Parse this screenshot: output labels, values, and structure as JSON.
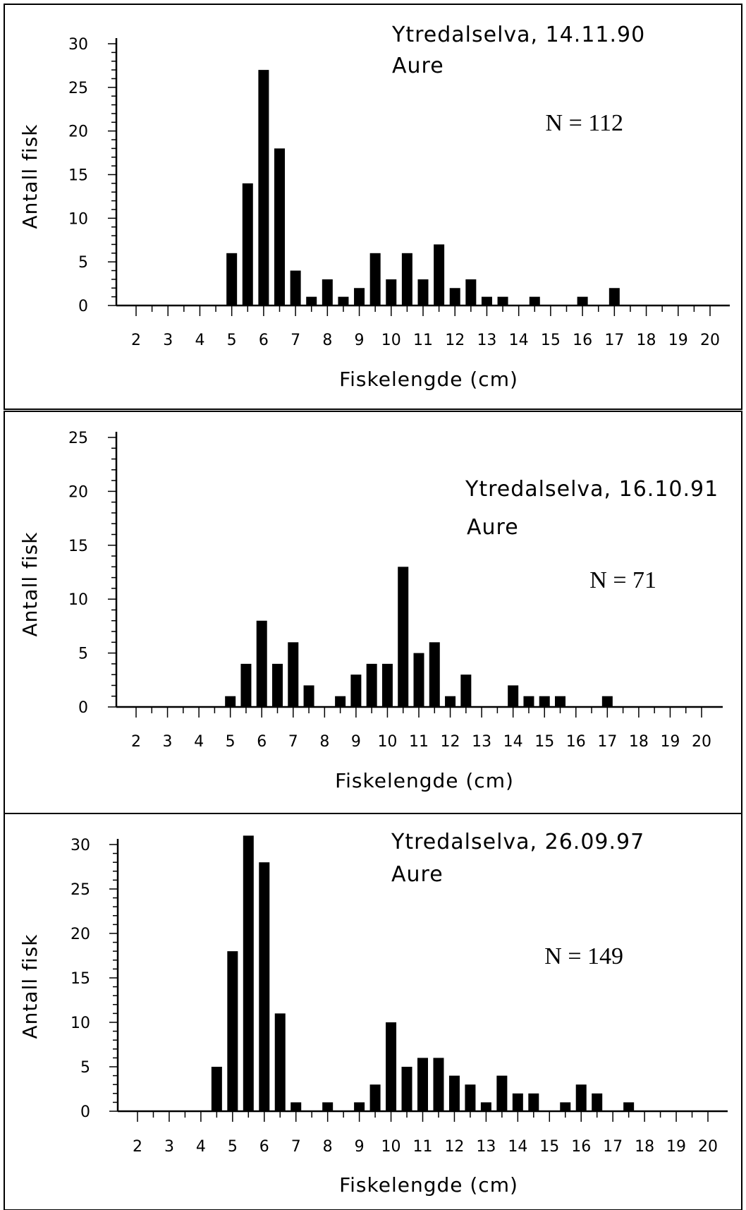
{
  "chart_data": [
    {
      "type": "bar",
      "title": "Ytredalselva, 14.11.90",
      "subtitle": "Aure",
      "annotation": "N = 112",
      "xlabel": "Fiskelengde (cm)",
      "ylabel": "Antall fisk",
      "xlim": [
        1.5,
        20.5
      ],
      "ylim": [
        0,
        30
      ],
      "y_ticks": [
        0,
        5,
        10,
        15,
        20,
        25,
        30
      ],
      "x_ticks": [
        2,
        3,
        4,
        5,
        6,
        7,
        8,
        9,
        10,
        11,
        12,
        13,
        14,
        15,
        16,
        17,
        18,
        19,
        20
      ],
      "x": [
        5,
        5.5,
        6,
        6.5,
        7,
        7.5,
        8,
        8.5,
        9,
        9.5,
        10,
        10.5,
        11,
        11.5,
        12,
        12.5,
        13,
        13.5,
        14.5,
        16,
        17
      ],
      "values": [
        6,
        14,
        27,
        18,
        4,
        1,
        3,
        1,
        2,
        6,
        3,
        6,
        3,
        7,
        2,
        3,
        1,
        1,
        1,
        1,
        2
      ],
      "color": "#000000"
    },
    {
      "type": "bar",
      "title": "Ytredalselva, 16.10.91",
      "subtitle": "Aure",
      "annotation": "N = 71",
      "xlabel": "Fiskelengde (cm)",
      "ylabel": "Antall fisk",
      "xlim": [
        1.5,
        20.5
      ],
      "ylim": [
        0,
        25
      ],
      "y_ticks": [
        0,
        5,
        10,
        15,
        20,
        25
      ],
      "x_ticks": [
        2,
        3,
        4,
        5,
        6,
        7,
        8,
        9,
        10,
        11,
        12,
        13,
        14,
        15,
        16,
        17,
        18,
        19,
        20
      ],
      "x": [
        5,
        5.5,
        6,
        6.5,
        7,
        7.5,
        8.5,
        9,
        9.5,
        10,
        10.5,
        11,
        11.5,
        12,
        12.5,
        14,
        14.5,
        15,
        15.5,
        17
      ],
      "values": [
        1,
        4,
        8,
        4,
        6,
        2,
        1,
        3,
        4,
        4,
        13,
        5,
        6,
        1,
        3,
        2,
        1,
        1,
        1,
        1
      ],
      "color": "#000000"
    },
    {
      "type": "bar",
      "title": "Ytredalselva, 26.09.97",
      "subtitle": "Aure",
      "annotation": "N = 149",
      "xlabel": "Fiskelengde (cm)",
      "ylabel": "Antall fisk",
      "xlim": [
        1.5,
        20.5
      ],
      "ylim": [
        0,
        30
      ],
      "y_ticks": [
        0,
        5,
        10,
        15,
        20,
        25,
        30
      ],
      "x_ticks": [
        2,
        3,
        4,
        5,
        6,
        7,
        8,
        9,
        10,
        11,
        12,
        13,
        14,
        15,
        16,
        17,
        18,
        19,
        20
      ],
      "x": [
        4.5,
        5,
        5.5,
        6,
        6.5,
        7,
        8,
        9,
        9.5,
        10,
        10.5,
        11,
        11.5,
        12,
        12.5,
        13,
        13.5,
        14,
        14.5,
        15.5,
        16,
        16.5,
        17.5
      ],
      "values": [
        5,
        18,
        31,
        28,
        11,
        1,
        1,
        1,
        3,
        10,
        5,
        6,
        6,
        4,
        3,
        1,
        4,
        2,
        2,
        1,
        3,
        2,
        1
      ],
      "color": "#000000"
    }
  ]
}
